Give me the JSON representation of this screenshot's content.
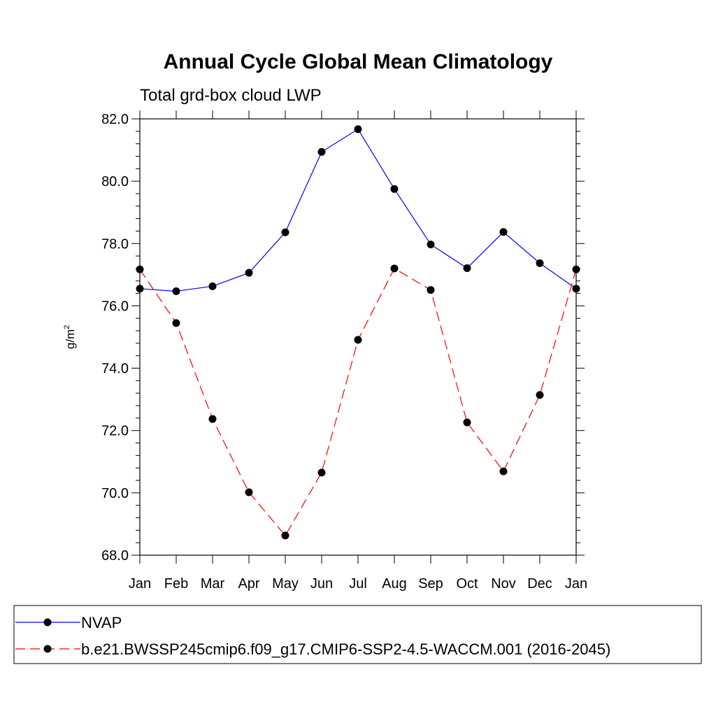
{
  "chart_data": {
    "type": "line",
    "title": "Annual Cycle Global Mean Climatology",
    "subtitle": "Total grd-box cloud LWP",
    "ylabel_base": "g/m",
    "ylabel_sup": "2",
    "xlabel": "",
    "ylim": [
      68.0,
      82.0
    ],
    "y_ticks": [
      "68.0",
      "70.0",
      "72.0",
      "74.0",
      "76.0",
      "78.0",
      "80.0",
      "82.0"
    ],
    "categories": [
      "Jan",
      "Feb",
      "Mar",
      "Apr",
      "May",
      "Jun",
      "Jul",
      "Aug",
      "Sep",
      "Oct",
      "Nov",
      "Dec",
      "Jan"
    ],
    "grid": false,
    "legend_position": "bottom",
    "series": [
      {
        "name": "NVAP",
        "color": "#0000ff",
        "line_style": "solid",
        "values": [
          76.55,
          76.47,
          76.63,
          77.06,
          78.36,
          80.94,
          81.67,
          79.75,
          77.97,
          77.21,
          78.37,
          77.37,
          76.55
        ]
      },
      {
        "name": "b.e21.BWSSP245cmip6.f09_g17.CMIP6-SSP2-4.5-WACCM.001 (2016-2045)",
        "color": "#ff0000",
        "line_style": "dashed",
        "values": [
          77.17,
          75.45,
          72.37,
          70.02,
          68.63,
          70.65,
          74.91,
          77.2,
          76.51,
          72.26,
          70.69,
          73.14,
          77.17
        ]
      }
    ]
  }
}
